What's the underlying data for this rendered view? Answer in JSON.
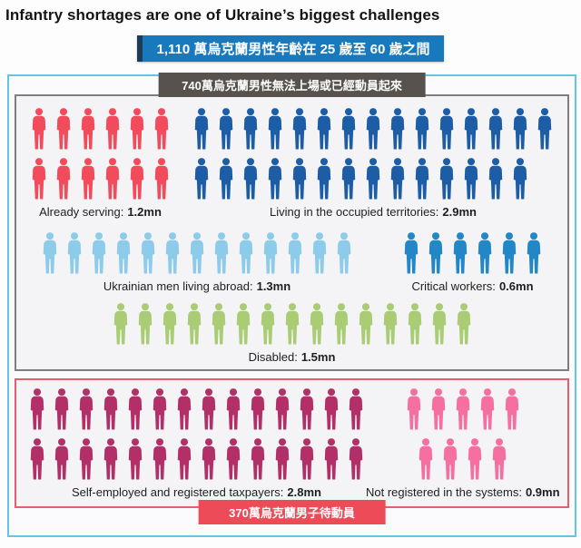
{
  "title": "Infantry shortages are one of Ukraine’s biggest challenges",
  "banners": {
    "top": "1,110 萬烏克蘭男性年齡在 25 歲至 60 歲之間",
    "ineligible": "740萬烏克蘭男性無法上場或已經動員起來",
    "awaiting": "370萬烏克蘭男子待動員"
  },
  "colors": {
    "top_banner_bg": "#1879bd",
    "top_banner_accent": "#1c3c58",
    "outer_border": "#65c3e6",
    "ineligible_banner_bg": "#57524e",
    "inner_border": "#7e7e7e",
    "awaiting_border": "#e2606b",
    "awaiting_banner_bg": "#ee4b59",
    "panel_bg": "#f4f4f6"
  },
  "chart_data": {
    "type": "pictogram",
    "title": "Infantry shortages are one of Ukraine’s biggest challenges",
    "unit_mn_per_icon": 0.1,
    "totals": {
      "all_men_aged_25_60_mn": 11.1,
      "ineligible_or_already_mobilised_mn": 7.4,
      "awaiting_mobilisation_mn": 3.7
    },
    "categories": [
      "Already serving",
      "Living in the occupied territories",
      "Ukrainian men living abroad",
      "Critical workers",
      "Disabled",
      "Self-employed and registered taxpayers",
      "Not registered in the systems"
    ],
    "values_mn": [
      1.2,
      2.9,
      1.3,
      0.6,
      1.5,
      2.8,
      0.9
    ],
    "groups": [
      {
        "name": "Already serving",
        "label": "Already serving:",
        "value_label": "1.2mn",
        "value_mn": 1.2,
        "icons": 12,
        "rows": [
          6,
          6
        ],
        "color": "#f24b5c",
        "section": "ineligible"
      },
      {
        "name": "Living in the occupied territories",
        "label": "Living in the occupied territories:",
        "value_label": "2.9mn",
        "value_mn": 2.9,
        "icons": 29,
        "rows": [
          15,
          14
        ],
        "color": "#1c5da6",
        "section": "ineligible"
      },
      {
        "name": "Ukrainian men living abroad",
        "label": "Ukrainian men living abroad:",
        "value_label": "1.3mn",
        "value_mn": 1.3,
        "icons": 13,
        "rows": [
          13
        ],
        "color": "#8ccbe9",
        "section": "ineligible"
      },
      {
        "name": "Critical workers",
        "label": "Critical workers:",
        "value_label": "0.6mn",
        "value_mn": 0.6,
        "icons": 6,
        "rows": [
          6
        ],
        "color": "#2187c6",
        "section": "ineligible"
      },
      {
        "name": "Disabled",
        "label": "Disabled:",
        "value_label": "1.5mn",
        "value_mn": 1.5,
        "icons": 15,
        "rows": [
          15
        ],
        "color": "#a9cc74",
        "section": "ineligible"
      },
      {
        "name": "Self-employed and registered taxpayers",
        "label": "Self-employed and registered taxpayers:",
        "value_label": "2.8mn",
        "value_mn": 2.8,
        "icons": 28,
        "rows": [
          14,
          14
        ],
        "color": "#b23067",
        "section": "awaiting"
      },
      {
        "name": "Not registered in the systems",
        "label": "Not registered in the systems:",
        "value_label": "0.9mn",
        "value_mn": 0.9,
        "icons": 9,
        "rows": [
          5,
          4
        ],
        "color": "#f56fa0",
        "section": "awaiting"
      }
    ]
  }
}
